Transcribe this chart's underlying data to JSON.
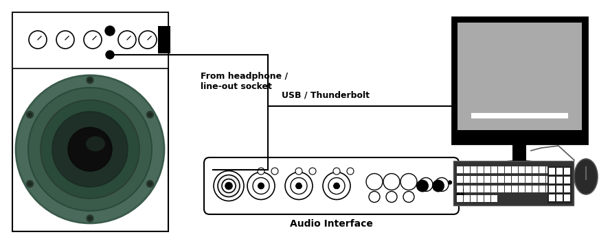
{
  "bg_color": "#ffffff",
  "lc": "#000000",
  "lw": 1.5,
  "label_headphone": "From headphone /\nline-out socket",
  "label_usb": "USB / Thunderbolt",
  "label_audio_interface": "Audio Interface",
  "label_fontsize": 9,
  "speaker_colors": [
    "#4a6b5b",
    "#3a5a4a",
    "#2a4a3a",
    "#1a2a22",
    "#0d0d0d"
  ],
  "monitor_screen": "#aaaaaa",
  "monitor_shine": "#cccccc",
  "keyboard_color": "#333333",
  "mouse_color": "#2a2a2a"
}
